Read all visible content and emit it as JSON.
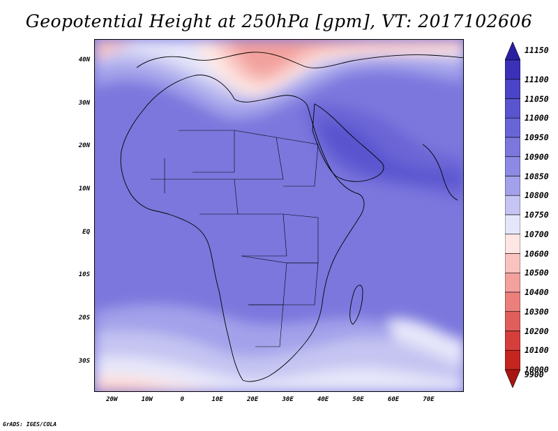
{
  "title": "Geopotential Height at 250hPa [gpm], VT: 2017102606",
  "credit": "GrADS: IGES/COLA",
  "map": {
    "variable": "geopotential height",
    "level": "250hPa",
    "units": "gpm",
    "valid_time": "2017102606",
    "projection": "latlon",
    "lon_range": [
      -25,
      80
    ],
    "lat_range": [
      -37,
      45
    ],
    "features": [
      "coastlines",
      "country-borders"
    ]
  },
  "axes": {
    "lat_ticks": [
      {
        "label": "40N",
        "value": 40
      },
      {
        "label": "30N",
        "value": 30
      },
      {
        "label": "20N",
        "value": 20
      },
      {
        "label": "10N",
        "value": 10
      },
      {
        "label": "EQ",
        "value": 0
      },
      {
        "label": "10S",
        "value": -10
      },
      {
        "label": "20S",
        "value": -20
      },
      {
        "label": "30S",
        "value": -30
      }
    ],
    "lon_ticks": [
      {
        "label": "20W",
        "value": -20
      },
      {
        "label": "10W",
        "value": -10
      },
      {
        "label": "0",
        "value": 0
      },
      {
        "label": "10E",
        "value": 10
      },
      {
        "label": "20E",
        "value": 20
      },
      {
        "label": "30E",
        "value": 30
      },
      {
        "label": "40E",
        "value": 40
      },
      {
        "label": "50E",
        "value": 50
      },
      {
        "label": "60E",
        "value": 60
      },
      {
        "label": "70E",
        "value": 70
      }
    ]
  },
  "colorbar": {
    "levels": [
      "11150",
      "11100",
      "11050",
      "11000",
      "10950",
      "10900",
      "10850",
      "10800",
      "10750",
      "10700",
      "10600",
      "10500",
      "10400",
      "10300",
      "10200",
      "10100",
      "10000",
      "9900"
    ],
    "colors": [
      "#2a1fa3",
      "#3b31b8",
      "#4c44c6",
      "#5a54cf",
      "#6a65d6",
      "#7b77dd",
      "#8d8ae3",
      "#a3a1ea",
      "#c5c4f2",
      "#e6e6fa",
      "#fde6e3",
      "#f9c3bf",
      "#f2a19d",
      "#ea7f7b",
      "#e05e5b",
      "#d63e3c",
      "#c4261f",
      "#a81512"
    ]
  }
}
